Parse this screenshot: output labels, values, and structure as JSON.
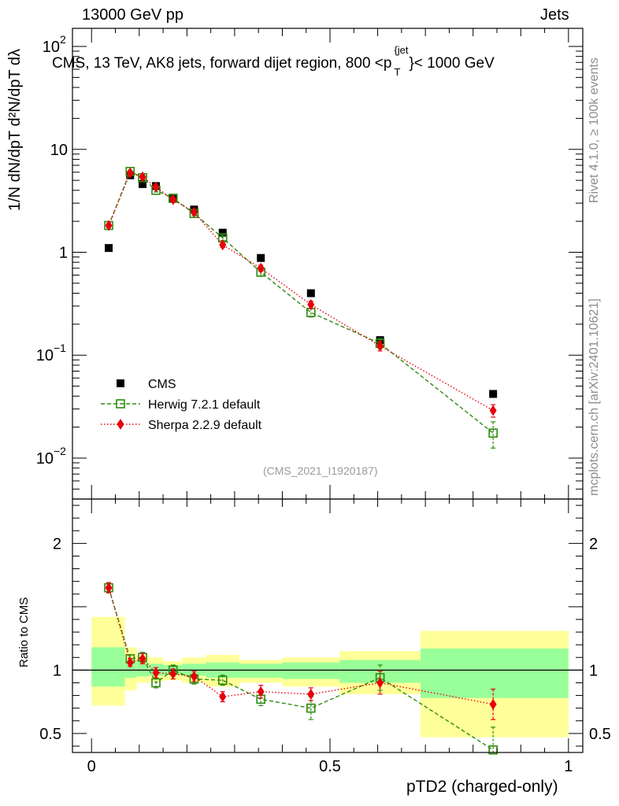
{
  "header": {
    "left": "13000 GeV pp",
    "right": "Jets"
  },
  "plot_title": "CMS, 13 TeV, AK8 jets, forward dijet region, 800 <p",
  "plot_title_sup": "{jet",
  "plot_title_sub": "T",
  "plot_title_end": "}< 1000 GeV",
  "watermark": "(CMS_2021_I1920187)",
  "side_labels": {
    "rivet": "Rivet 4.1.0, ≥ 100k events",
    "mcplots": "mcplots.cern.ch [arXiv:2401.10621]"
  },
  "y_axis_label_main": "1/N dN/dpT d²N/dpT dλ",
  "y_axis_label_ratio": "Ratio to CMS",
  "x_axis_label": "pTD2 (charged-only)",
  "colors": {
    "cms": "#000000",
    "herwig": "#2e8b0f",
    "sherpa": "#e8000b",
    "band_inner": "#99ff99",
    "band_outer": "#ffff99"
  },
  "chart_data": [
    {
      "type": "scatter",
      "name": "main",
      "yscale": "log",
      "xlim": [
        -0.04,
        1.03
      ],
      "ylim": [
        0.004,
        150
      ],
      "y_ticks": [
        {
          "value": 0.01,
          "base": "10",
          "exp": "−2"
        },
        {
          "value": 0.1,
          "base": "10",
          "exp": "−1"
        },
        {
          "value": 1,
          "base": "1",
          "exp": ""
        },
        {
          "value": 10,
          "base": "10",
          "exp": ""
        },
        {
          "value": 100,
          "base": "10",
          "exp": "2"
        }
      ],
      "legend": [
        {
          "label": "CMS",
          "key": "cms"
        },
        {
          "label": "Herwig 7.2.1 default",
          "key": "herwig"
        },
        {
          "label": "Sherpa 2.2.9 default",
          "key": "sherpa"
        }
      ],
      "series": [
        {
          "name": "CMS",
          "key": "cms",
          "marker": "square-filled",
          "x": [
            0.036,
            0.081,
            0.107,
            0.135,
            0.171,
            0.215,
            0.275,
            0.355,
            0.46,
            0.605,
            0.842
          ],
          "y": [
            1.1,
            5.6,
            4.6,
            4.4,
            3.3,
            2.6,
            1.55,
            0.88,
            0.4,
            0.14,
            0.042
          ],
          "err": [
            0,
            0,
            0,
            0,
            0,
            0,
            0,
            0,
            0,
            0,
            0
          ]
        },
        {
          "name": "Herwig 7.2.1 default",
          "key": "herwig",
          "marker": "square-open",
          "line": "dashed",
          "x": [
            0.036,
            0.081,
            0.107,
            0.135,
            0.171,
            0.215,
            0.275,
            0.355,
            0.46,
            0.605,
            0.842
          ],
          "y": [
            1.82,
            6.1,
            5.3,
            4.0,
            3.35,
            2.38,
            1.38,
            0.64,
            0.26,
            0.13,
            0.0175
          ],
          "err": [
            0.08,
            0.2,
            0.2,
            0.15,
            0.12,
            0.1,
            0.08,
            0.05,
            0.025,
            0.015,
            0.005
          ]
        },
        {
          "name": "Sherpa 2.2.9 default",
          "key": "sherpa",
          "marker": "diamond",
          "line": "dotted",
          "x": [
            0.036,
            0.081,
            0.107,
            0.135,
            0.171,
            0.215,
            0.275,
            0.355,
            0.46,
            0.605,
            0.842
          ],
          "y": [
            1.82,
            5.9,
            5.4,
            4.3,
            3.25,
            2.45,
            1.18,
            0.7,
            0.31,
            0.123,
            0.029
          ],
          "err": [
            0.08,
            0.2,
            0.2,
            0.15,
            0.12,
            0.1,
            0.07,
            0.05,
            0.025,
            0.013,
            0.004
          ]
        }
      ]
    },
    {
      "type": "scatter",
      "name": "ratio",
      "yscale": "linear",
      "xlim": [
        -0.04,
        1.03
      ],
      "ylim": [
        0.35,
        2.35
      ],
      "y_ticks": [
        0.5,
        1,
        1.5,
        2
      ],
      "y_tick_labels": [
        "0.5",
        "1",
        "",
        "2"
      ],
      "x_ticks": [
        0,
        0.5,
        1
      ],
      "x_tick_labels": [
        "0",
        "0.5",
        "1"
      ],
      "reference": 1,
      "bands": [
        {
          "x0": 0.0,
          "x1": 0.07,
          "inner": [
            0.87,
            1.18
          ],
          "outer": [
            0.72,
            1.42
          ]
        },
        {
          "x0": 0.07,
          "x1": 0.095,
          "inner": [
            0.94,
            1.08
          ],
          "outer": [
            0.84,
            1.18
          ]
        },
        {
          "x0": 0.095,
          "x1": 0.12,
          "inner": [
            0.95,
            1.06
          ],
          "outer": [
            0.9,
            1.12
          ]
        },
        {
          "x0": 0.12,
          "x1": 0.15,
          "inner": [
            0.955,
            1.05
          ],
          "outer": [
            0.91,
            1.1
          ]
        },
        {
          "x0": 0.15,
          "x1": 0.19,
          "inner": [
            0.96,
            1.04
          ],
          "outer": [
            0.92,
            1.07
          ]
        },
        {
          "x0": 0.19,
          "x1": 0.24,
          "inner": [
            0.955,
            1.05
          ],
          "outer": [
            0.9,
            1.1
          ]
        },
        {
          "x0": 0.24,
          "x1": 0.31,
          "inner": [
            0.94,
            1.06
          ],
          "outer": [
            0.87,
            1.12
          ]
        },
        {
          "x0": 0.31,
          "x1": 0.4,
          "inner": [
            0.94,
            1.05
          ],
          "outer": [
            0.9,
            1.08
          ]
        },
        {
          "x0": 0.4,
          "x1": 0.52,
          "inner": [
            0.93,
            1.06
          ],
          "outer": [
            0.87,
            1.1
          ]
        },
        {
          "x0": 0.52,
          "x1": 0.69,
          "inner": [
            0.9,
            1.08
          ],
          "outer": [
            0.81,
            1.15
          ]
        },
        {
          "x0": 0.69,
          "x1": 1.0,
          "inner": [
            0.78,
            1.17
          ],
          "outer": [
            0.47,
            1.31
          ]
        }
      ],
      "series": [
        {
          "name": "Herwig 7.2.1 default",
          "key": "herwig",
          "marker": "square-open",
          "line": "dashed",
          "x": [
            0.036,
            0.081,
            0.107,
            0.135,
            0.171,
            0.215,
            0.275,
            0.355,
            0.46,
            0.605,
            0.842
          ],
          "y": [
            1.65,
            1.09,
            1.1,
            0.9,
            1.0,
            0.93,
            0.92,
            0.77,
            0.7,
            0.94,
            0.37
          ],
          "err": [
            0.04,
            0.03,
            0.04,
            0.04,
            0.04,
            0.04,
            0.04,
            0.05,
            0.09,
            0.1,
            0.18
          ]
        },
        {
          "name": "Sherpa 2.2.9 default",
          "key": "sherpa",
          "marker": "diamond",
          "line": "dotted",
          "x": [
            0.036,
            0.081,
            0.107,
            0.135,
            0.171,
            0.215,
            0.275,
            0.355,
            0.46,
            0.605,
            0.842
          ],
          "y": [
            1.65,
            1.06,
            1.09,
            0.98,
            0.97,
            0.95,
            0.79,
            0.83,
            0.81,
            0.9,
            0.73
          ],
          "err": [
            0.04,
            0.03,
            0.04,
            0.04,
            0.04,
            0.04,
            0.04,
            0.05,
            0.05,
            0.09,
            0.12
          ]
        }
      ]
    }
  ]
}
